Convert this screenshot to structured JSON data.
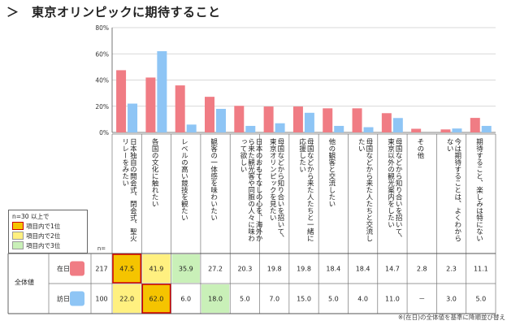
{
  "title": "＞　東京オリンピックに期待すること",
  "note": "※(在日)の全体値を基準に降順並び替え",
  "legend": {
    "header": "n=30 以上で",
    "items": [
      {
        "label": "項目内で1位",
        "color": "#f5c400"
      },
      {
        "label": "項目内で2位",
        "color": "#fff080"
      },
      {
        "label": "項目内で3位",
        "color": "#c9f0b8"
      }
    ]
  },
  "table": {
    "row_group_label": "全体値",
    "n_header": "n=",
    "rows": [
      {
        "name": "在日",
        "n": "217",
        "color": "#f07c84"
      },
      {
        "name": "訪日",
        "n": "100",
        "color": "#8ec5f5"
      }
    ]
  },
  "chart_data": {
    "type": "bar",
    "ylim": [
      0,
      80
    ],
    "yticks": [
      "0%",
      "20%",
      "40%",
      "60%",
      "80%"
    ],
    "categories": [
      "日本独自の開会式、閉会式、聖火リレーをみたい",
      "各国の文化に触れたい",
      "レベルの高い競技を観たい",
      "観客の一体感を味わいたい",
      "日本のおもてなしの心を、海外から来た観光客や同胞の人々に味わって欲しい",
      "母国などから知り合いを招いて、東京オリンピックを見たい",
      "母国などから来た人たちと一緒に応援したい",
      "他の観客と交流したい",
      "母国などから来た人たちと交流したい",
      "母国などから知り合いを招いて、東京以外の観光案内をしたい",
      "その他",
      "今は期待することは、よくわからない",
      "期待すること、楽しみは特にない"
    ],
    "series": [
      {
        "name": "在日",
        "values": [
          47.5,
          41.9,
          35.9,
          27.2,
          20.3,
          19.8,
          19.8,
          18.4,
          18.4,
          14.7,
          2.8,
          2.3,
          11.1
        ],
        "labels": [
          "47.5",
          "41.9",
          "35.9",
          "27.2",
          "20.3",
          "19.8",
          "19.8",
          "18.4",
          "18.4",
          "14.7",
          "2.8",
          "2.3",
          "11.1"
        ],
        "highlight": [
          1,
          2,
          3,
          0,
          0,
          0,
          0,
          0,
          0,
          0,
          0,
          0,
          0
        ]
      },
      {
        "name": "訪日",
        "values": [
          22.0,
          62.0,
          6.0,
          18.0,
          5.0,
          7.0,
          15.0,
          5.0,
          4.0,
          11.0,
          0,
          3.0,
          5.0
        ],
        "labels": [
          "22.0",
          "62.0",
          "6.0",
          "18.0",
          "5.0",
          "7.0",
          "15.0",
          "5.0",
          "4.0",
          "11.0",
          "－",
          "3.0",
          "5.0"
        ],
        "highlight": [
          2,
          1,
          0,
          3,
          0,
          0,
          0,
          0,
          0,
          0,
          0,
          0,
          0
        ]
      }
    ],
    "grid": true
  }
}
